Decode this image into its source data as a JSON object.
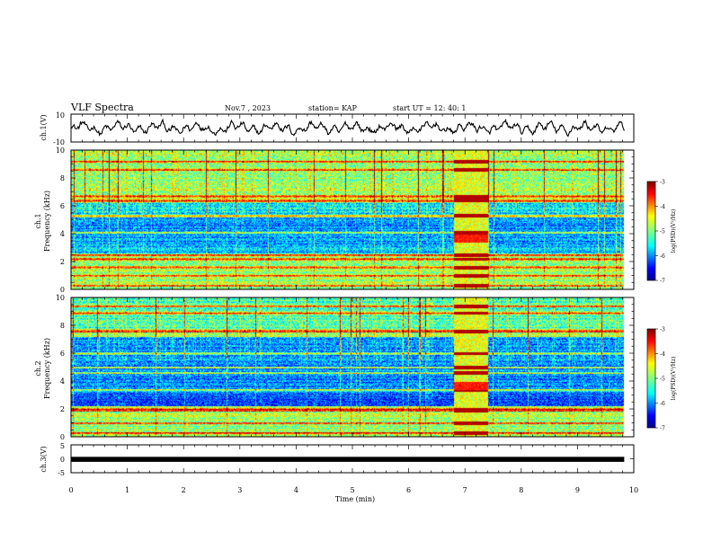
{
  "header": {
    "title": "VLF Spectra",
    "date": "Nov.7 , 2023",
    "station": "station= KAP",
    "start": "start UT = 12: 40: 1"
  },
  "chart_data": [
    {
      "type": "line",
      "panel": "ch1-waveform",
      "ylabel": "ch.1(V)",
      "ylim": [
        -10,
        10
      ],
      "yticks": [
        "10",
        "-10"
      ],
      "xlim": [
        0,
        10
      ],
      "trace_range": [
        0,
        9.83
      ],
      "description": "noisy oscillating voltage trace",
      "mean": 0,
      "amplitude": 4
    },
    {
      "type": "heatmap",
      "panel": "ch1-spectrogram",
      "ylabel": "ch.1\nFrequency (kHz)",
      "ylabel_line1": "ch.1",
      "ylabel_line2": "Frequency (kHz)",
      "ylim": [
        0,
        10
      ],
      "yticks": [
        "0",
        "2",
        "4",
        "6",
        "8",
        "10"
      ],
      "xlim": [
        0,
        10
      ],
      "data_extent_min": [
        0,
        9.83
      ],
      "event_window_min": [
        6.8,
        7.4
      ],
      "strong_lines_khz": [
        0.3,
        1.0,
        1.6,
        2.2,
        2.5,
        4.1,
        5.3,
        6.4,
        6.7,
        8.6,
        9.2
      ],
      "colorbar": {
        "label": "log(PSD)(V²/Hz)",
        "range": [
          -7,
          -3
        ],
        "ticks": [
          "-3",
          "-4",
          "-5",
          "-6",
          "-7"
        ]
      }
    },
    {
      "type": "heatmap",
      "panel": "ch2-spectrogram",
      "ylabel_line1": "ch.2",
      "ylabel_line2": "Frequency (kHz)",
      "ylim": [
        0,
        10
      ],
      "yticks": [
        "0",
        "2",
        "4",
        "6",
        "8",
        "10"
      ],
      "xlim": [
        0,
        10
      ],
      "data_extent_min": [
        0,
        9.83
      ],
      "event_window_min": [
        6.8,
        7.4
      ],
      "strong_lines_khz": [
        0.3,
        1.0,
        1.9,
        2.0,
        3.4,
        4.6,
        5.0,
        6.0,
        7.6,
        8.9,
        9.4
      ],
      "colorbar": {
        "label": "log(PSD)(V²/Hz)",
        "range": [
          -7,
          -3
        ],
        "ticks": [
          "-3",
          "-4",
          "-5",
          "-6",
          "-7"
        ]
      }
    },
    {
      "type": "line",
      "panel": "ch3-waveform",
      "ylabel": "ch.3(V)",
      "ylim": [
        -5,
        5
      ],
      "yticks": [
        "5",
        "0",
        "-5"
      ],
      "xlim": [
        0,
        10
      ],
      "trace_range": [
        0,
        9.83
      ],
      "level": -0.2,
      "thickness_v": 0.6
    }
  ],
  "xaxis": {
    "label": "Time (min)",
    "ticks": [
      "0",
      "1",
      "2",
      "3",
      "4",
      "5",
      "6",
      "7",
      "8",
      "9",
      "10"
    ]
  },
  "colors": {
    "jet": [
      "#00008f",
      "#0000ff",
      "#0080ff",
      "#00ffff",
      "#80ff80",
      "#ffff00",
      "#ff8000",
      "#ff0000",
      "#800000"
    ]
  }
}
